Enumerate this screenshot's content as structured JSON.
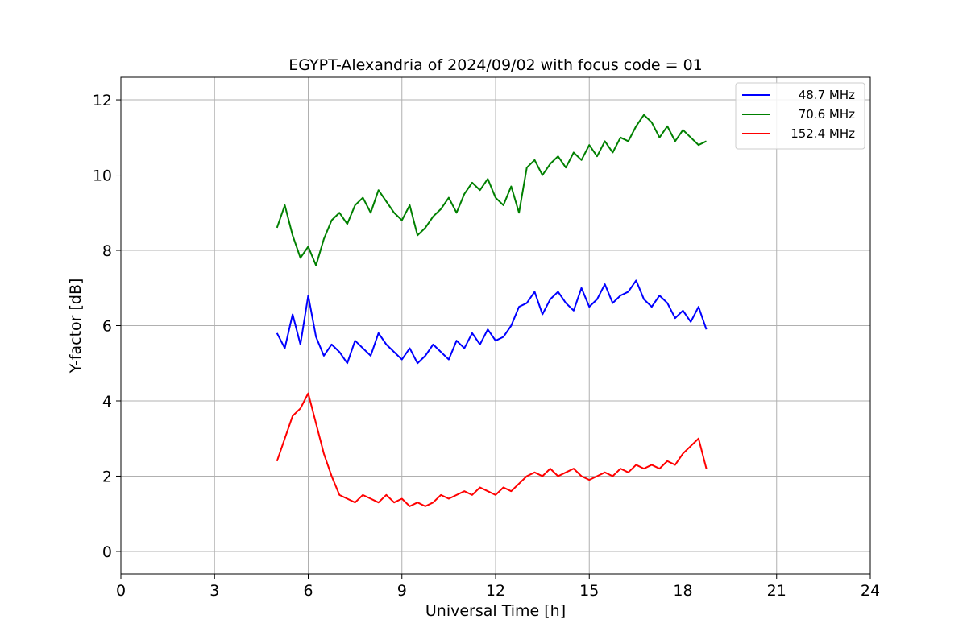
{
  "chart_data": {
    "type": "line",
    "title": "EGYPT-Alexandria of 2024/09/02 with focus code = 01",
    "xlabel": "Universal Time [h]",
    "ylabel": "Y-factor [dB]",
    "xlim": [
      0,
      24
    ],
    "ylim": [
      -0.6,
      12.6
    ],
    "xticks": [
      0,
      3,
      6,
      9,
      12,
      15,
      18,
      21,
      24
    ],
    "yticks": [
      0,
      2,
      4,
      6,
      8,
      10,
      12
    ],
    "grid": true,
    "legend_position": "top-right",
    "series": [
      {
        "name": "48.7 MHz",
        "color": "#0000ff",
        "x": [
          5.0,
          5.25,
          5.5,
          5.75,
          6.0,
          6.25,
          6.5,
          6.75,
          7.0,
          7.25,
          7.5,
          7.75,
          8.0,
          8.25,
          8.5,
          8.75,
          9.0,
          9.25,
          9.5,
          9.75,
          10.0,
          10.25,
          10.5,
          10.75,
          11.0,
          11.25,
          11.5,
          11.75,
          12.0,
          12.25,
          12.5,
          12.75,
          13.0,
          13.25,
          13.5,
          13.75,
          14.0,
          14.25,
          14.5,
          14.75,
          15.0,
          15.25,
          15.5,
          15.75,
          16.0,
          16.25,
          16.5,
          16.75,
          17.0,
          17.25,
          17.5,
          17.75,
          18.0,
          18.25,
          18.5,
          18.75
        ],
        "y": [
          5.8,
          5.4,
          6.3,
          5.5,
          6.8,
          5.7,
          5.2,
          5.5,
          5.3,
          5.0,
          5.6,
          5.4,
          5.2,
          5.8,
          5.5,
          5.3,
          5.1,
          5.4,
          5.0,
          5.2,
          5.5,
          5.3,
          5.1,
          5.6,
          5.4,
          5.8,
          5.5,
          5.9,
          5.6,
          5.7,
          6.0,
          6.5,
          6.6,
          6.9,
          6.3,
          6.7,
          6.9,
          6.6,
          6.4,
          7.0,
          6.5,
          6.7,
          7.1,
          6.6,
          6.8,
          6.9,
          7.2,
          6.7,
          6.5,
          6.8,
          6.6,
          6.2,
          6.4,
          6.1,
          6.5,
          5.9
        ]
      },
      {
        "name": "70.6 MHz",
        "color": "#008000",
        "x": [
          5.0,
          5.25,
          5.5,
          5.75,
          6.0,
          6.25,
          6.5,
          6.75,
          7.0,
          7.25,
          7.5,
          7.75,
          8.0,
          8.25,
          8.5,
          8.75,
          9.0,
          9.25,
          9.5,
          9.75,
          10.0,
          10.25,
          10.5,
          10.75,
          11.0,
          11.25,
          11.5,
          11.75,
          12.0,
          12.25,
          12.5,
          12.75,
          13.0,
          13.25,
          13.5,
          13.75,
          14.0,
          14.25,
          14.5,
          14.75,
          15.0,
          15.25,
          15.5,
          15.75,
          16.0,
          16.25,
          16.5,
          16.75,
          17.0,
          17.25,
          17.5,
          17.75,
          18.0,
          18.25,
          18.5,
          18.75
        ],
        "y": [
          8.6,
          9.2,
          8.4,
          7.8,
          8.1,
          7.6,
          8.3,
          8.8,
          9.0,
          8.7,
          9.2,
          9.4,
          9.0,
          9.6,
          9.3,
          9.0,
          8.8,
          9.2,
          8.4,
          8.6,
          8.9,
          9.1,
          9.4,
          9.0,
          9.5,
          9.8,
          9.6,
          9.9,
          9.4,
          9.2,
          9.7,
          9.0,
          10.2,
          10.4,
          10.0,
          10.3,
          10.5,
          10.2,
          10.6,
          10.4,
          10.8,
          10.5,
          10.9,
          10.6,
          11.0,
          10.9,
          11.3,
          11.6,
          11.4,
          11.0,
          11.3,
          10.9,
          11.2,
          11.0,
          10.8,
          10.9
        ]
      },
      {
        "name": "152.4 MHz",
        "color": "#ff0000",
        "x": [
          5.0,
          5.25,
          5.5,
          5.75,
          6.0,
          6.25,
          6.5,
          6.75,
          7.0,
          7.25,
          7.5,
          7.75,
          8.0,
          8.25,
          8.5,
          8.75,
          9.0,
          9.25,
          9.5,
          9.75,
          10.0,
          10.25,
          10.5,
          10.75,
          11.0,
          11.25,
          11.5,
          11.75,
          12.0,
          12.25,
          12.5,
          12.75,
          13.0,
          13.25,
          13.5,
          13.75,
          14.0,
          14.25,
          14.5,
          14.75,
          15.0,
          15.25,
          15.5,
          15.75,
          16.0,
          16.25,
          16.5,
          16.75,
          17.0,
          17.25,
          17.5,
          17.75,
          18.0,
          18.25,
          18.5,
          18.75
        ],
        "y": [
          2.4,
          3.0,
          3.6,
          3.8,
          4.2,
          3.4,
          2.6,
          2.0,
          1.5,
          1.4,
          1.3,
          1.5,
          1.4,
          1.3,
          1.5,
          1.3,
          1.4,
          1.2,
          1.3,
          1.2,
          1.3,
          1.5,
          1.4,
          1.5,
          1.6,
          1.5,
          1.7,
          1.6,
          1.5,
          1.7,
          1.6,
          1.8,
          2.0,
          2.1,
          2.0,
          2.2,
          2.0,
          2.1,
          2.2,
          2.0,
          1.9,
          2.0,
          2.1,
          2.0,
          2.2,
          2.1,
          2.3,
          2.2,
          2.3,
          2.2,
          2.4,
          2.3,
          2.6,
          2.8,
          3.0,
          2.2
        ]
      }
    ]
  }
}
